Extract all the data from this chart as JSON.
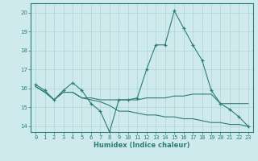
{
  "xlabel": "Humidex (Indice chaleur)",
  "x": [
    0,
    1,
    2,
    3,
    4,
    5,
    6,
    7,
    8,
    9,
    10,
    11,
    12,
    13,
    14,
    15,
    16,
    17,
    18,
    19,
    20,
    21,
    22,
    23
  ],
  "line1": [
    16.2,
    15.9,
    15.4,
    15.9,
    16.3,
    15.9,
    15.2,
    14.8,
    13.7,
    15.4,
    15.4,
    15.5,
    17.0,
    18.3,
    18.3,
    20.1,
    19.2,
    18.3,
    17.5,
    15.9,
    15.2,
    14.9,
    14.5,
    14.0
  ],
  "line2": [
    16.1,
    15.8,
    15.4,
    15.8,
    15.8,
    15.5,
    15.5,
    15.4,
    15.4,
    15.4,
    15.4,
    15.4,
    15.5,
    15.5,
    15.5,
    15.6,
    15.6,
    15.7,
    15.7,
    15.7,
    15.2,
    15.2,
    15.2,
    15.2
  ],
  "line3": [
    16.1,
    15.8,
    15.4,
    15.8,
    15.8,
    15.5,
    15.4,
    15.3,
    15.1,
    14.8,
    14.8,
    14.7,
    14.6,
    14.6,
    14.5,
    14.5,
    14.4,
    14.4,
    14.3,
    14.2,
    14.2,
    14.1,
    14.1,
    14.0
  ],
  "line_color": "#2d7d78",
  "bg_color": "#ceeaec",
  "grid_color": "#afd4d6",
  "ylim": [
    13.7,
    20.5
  ],
  "yticks": [
    14,
    15,
    16,
    17,
    18,
    19,
    20
  ],
  "xlim": [
    -0.5,
    23.5
  ],
  "xticks": [
    0,
    1,
    2,
    3,
    4,
    5,
    6,
    7,
    8,
    9,
    10,
    11,
    12,
    13,
    14,
    15,
    16,
    17,
    18,
    19,
    20,
    21,
    22,
    23
  ]
}
